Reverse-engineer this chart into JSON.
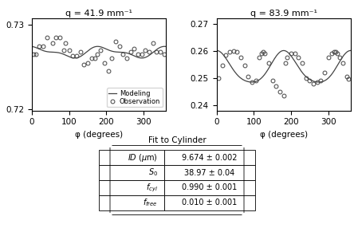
{
  "plot1_title": "q = 41.9 mm⁻¹",
  "plot2_title": "q = 83.9 mm⁻¹",
  "xlabel": "φ (degrees)",
  "plot1_ylim": [
    0.7198,
    0.7308
  ],
  "plot2_ylim": [
    0.238,
    0.272
  ],
  "plot1_yticks": [
    0.72,
    0.73
  ],
  "plot2_yticks": [
    0.24,
    0.25,
    0.26,
    0.27
  ],
  "xlim": [
    0,
    360
  ],
  "xticks": [
    0,
    100,
    200,
    300
  ],
  "legend_labels": [
    "Modeling",
    "Observation"
  ],
  "table_title": "Fit to Cylinder",
  "table_rows": [
    [
      "$ID$ (μm)",
      "9.674 ± 0.002"
    ],
    [
      "$S_0$",
      "38.97 ± 0.04"
    ],
    [
      "$f_{cyl}$",
      "0.990 ± 0.001"
    ],
    [
      "$f_{free}$",
      "0.010 ± 0.001"
    ]
  ],
  "plot1_obs_phi": [
    5,
    10,
    20,
    30,
    40,
    55,
    65,
    75,
    85,
    90,
    100,
    110,
    120,
    130,
    140,
    150,
    160,
    170,
    175,
    185,
    195,
    205,
    215,
    225,
    235,
    245,
    255,
    265,
    275,
    285,
    295,
    305,
    315,
    325,
    335,
    345,
    355
  ],
  "plot1_obs_val": [
    0.7265,
    0.7265,
    0.7275,
    0.7275,
    0.7285,
    0.7278,
    0.7285,
    0.7285,
    0.727,
    0.7278,
    0.727,
    0.7263,
    0.7263,
    0.7268,
    0.7253,
    0.7255,
    0.726,
    0.726,
    0.7265,
    0.727,
    0.7255,
    0.7245,
    0.726,
    0.728,
    0.7275,
    0.7265,
    0.726,
    0.7268,
    0.7272,
    0.7265,
    0.7265,
    0.727,
    0.7268,
    0.7278,
    0.7268,
    0.7268,
    0.7265
  ],
  "plot2_obs_phi": [
    5,
    15,
    25,
    35,
    45,
    55,
    65,
    75,
    85,
    95,
    105,
    115,
    120,
    125,
    130,
    140,
    150,
    160,
    170,
    180,
    185,
    190,
    200,
    210,
    220,
    230,
    240,
    250,
    260,
    270,
    280,
    290,
    300,
    310,
    315,
    320,
    325,
    330,
    340,
    350,
    355
  ],
  "plot2_obs_val": [
    0.25,
    0.2545,
    0.2585,
    0.2595,
    0.26,
    0.2595,
    0.2575,
    0.2545,
    0.2505,
    0.2485,
    0.249,
    0.2575,
    0.259,
    0.2595,
    0.259,
    0.2555,
    0.249,
    0.247,
    0.245,
    0.2435,
    0.2555,
    0.2575,
    0.259,
    0.259,
    0.2575,
    0.2555,
    0.25,
    0.249,
    0.248,
    0.2485,
    0.249,
    0.252,
    0.2575,
    0.259,
    0.2595,
    0.2595,
    0.259,
    0.2575,
    0.2555,
    0.2505,
    0.2495
  ],
  "line_color": "#444444",
  "obs_color": "#444444",
  "background_color": "#ffffff",
  "model1_base": 0.72675,
  "model1_amp1": 0.00055,
  "model1_amp2": 0.00025,
  "model1_phase1": -0.4,
  "model1_phase2": 0.8,
  "model2_base": 0.2535,
  "model2_amp1": 0.0058,
  "model2_amp2": 0.0008,
  "model2_phase1": -0.05,
  "model2_phase2": 0.1
}
